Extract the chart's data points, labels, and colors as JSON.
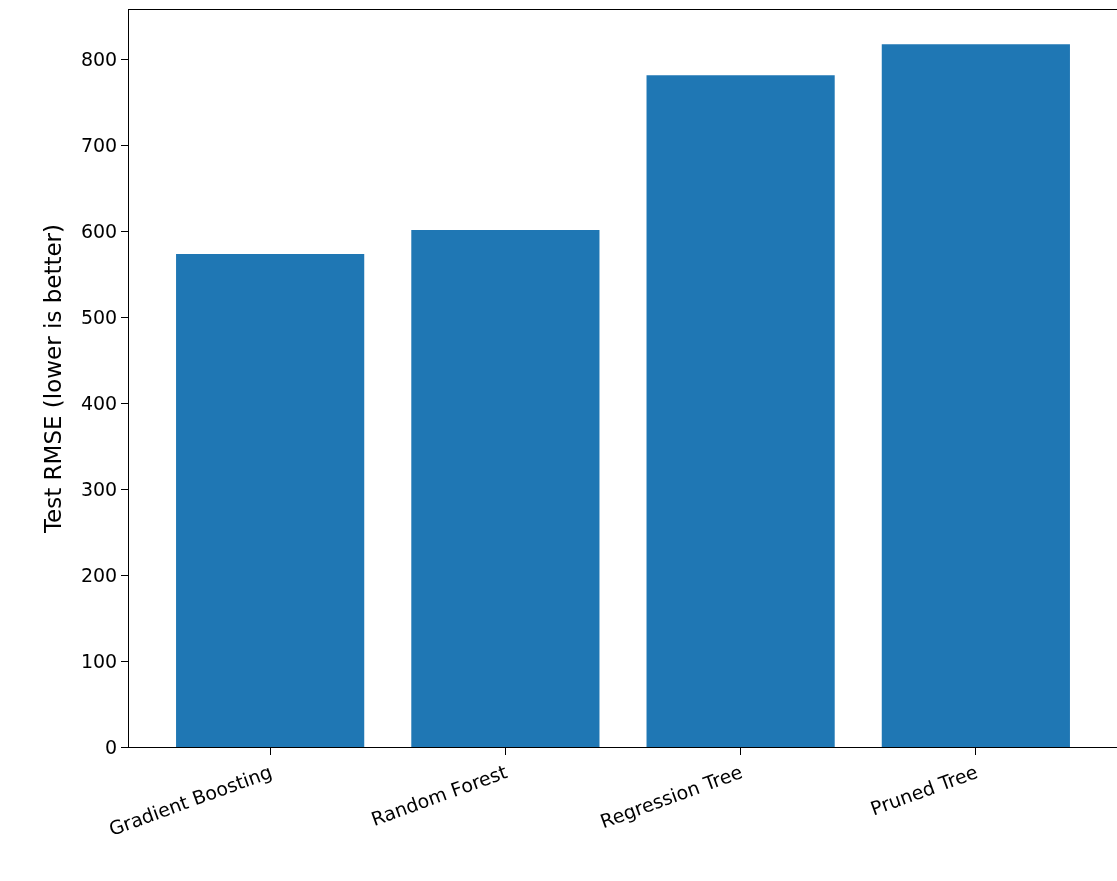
{
  "chart_data": {
    "type": "bar",
    "ylabel": "Test RMSE (lower is better)",
    "categories": [
      "Gradient Boosting",
      "Random Forest",
      "Regression Tree",
      "Pruned Tree"
    ],
    "values": [
      574,
      602,
      782,
      818
    ],
    "color": "#1f77b4",
    "ylim": [
      0,
      858
    ],
    "yticks": [
      0,
      100,
      200,
      300,
      400,
      500,
      600,
      700,
      800
    ],
    "grid": false,
    "legend": false
  }
}
